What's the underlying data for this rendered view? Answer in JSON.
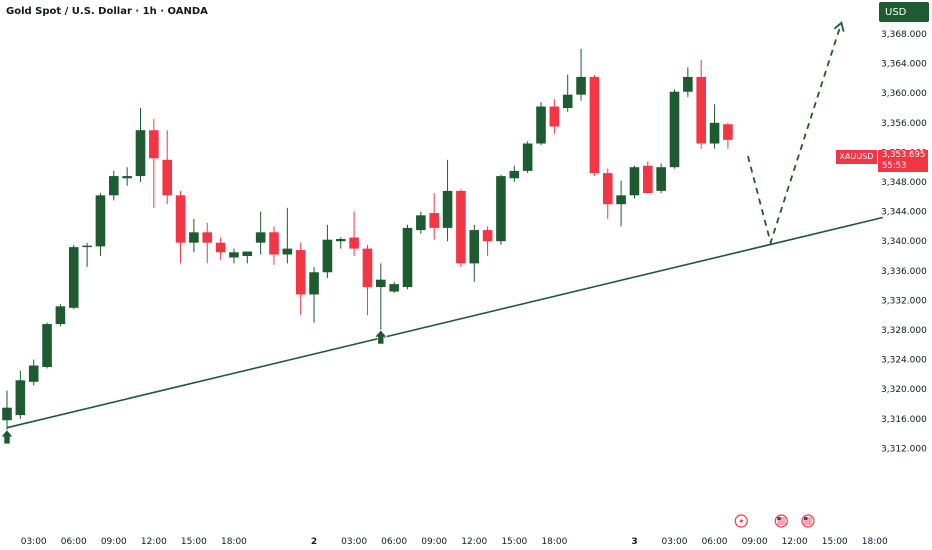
{
  "header": {
    "title": "Gold Spot / U.S. Dollar · 1h · OANDA",
    "currency": "USD"
  },
  "price_tag": {
    "symbol": "XAUUSD",
    "price": "3,353.695",
    "countdown": "55:53"
  },
  "colors": {
    "bull": "#1e5b31",
    "bear": "#f23645",
    "trendline": "#1e5b31",
    "projection": "#1e5b31",
    "badge": "#f23645"
  },
  "icons": {
    "pivot_arrows": "up-arrow-icon",
    "events": [
      "lightning-icon",
      "us-flag-icon",
      "us-flag-icon"
    ]
  },
  "chart_data": {
    "type": "candlestick",
    "symbol": "XAUUSD",
    "title": "Gold Spot / U.S. Dollar · 1h · OANDA",
    "ylim": [
      3311,
      3370
    ],
    "y_ticks": [
      "3,368.000",
      "3,364.000",
      "3,360.000",
      "3,356.000",
      "3,352.000",
      "3,348.000",
      "3,344.000",
      "3,340.000",
      "3,336.000",
      "3,332.000",
      "3,328.000",
      "3,324.000",
      "3,320.000",
      "3,316.000",
      "3,312.000"
    ],
    "x_ticks": [
      {
        "label": "03:00",
        "bold": false
      },
      {
        "label": "06:00",
        "bold": false
      },
      {
        "label": "09:00",
        "bold": false
      },
      {
        "label": "12:00",
        "bold": false
      },
      {
        "label": "15:00",
        "bold": false
      },
      {
        "label": "18:00",
        "bold": false
      },
      {
        "label": "2",
        "bold": true
      },
      {
        "label": "03:00",
        "bold": false
      },
      {
        "label": "06:00",
        "bold": false
      },
      {
        "label": "09:00",
        "bold": false
      },
      {
        "label": "12:00",
        "bold": false
      },
      {
        "label": "15:00",
        "bold": false
      },
      {
        "label": "18:00",
        "bold": false
      },
      {
        "label": "3",
        "bold": true
      },
      {
        "label": "03:00",
        "bold": false
      },
      {
        "label": "06:00",
        "bold": false
      },
      {
        "label": "09:00",
        "bold": false
      },
      {
        "label": "12:00",
        "bold": false
      },
      {
        "label": "15:00",
        "bold": false
      },
      {
        "label": "18:00",
        "bold": false
      }
    ],
    "x_tick_hours": [
      3,
      6,
      9,
      12,
      15,
      18,
      24,
      27,
      30,
      33,
      36,
      39,
      42,
      48,
      51,
      54,
      57,
      60,
      63,
      66
    ],
    "candles": [
      {
        "o": 3315.8,
        "h": 3319.8,
        "l": 3314.5,
        "c": 3317.5
      },
      {
        "o": 3316.5,
        "h": 3322.5,
        "l": 3316.0,
        "c": 3321.2
      },
      {
        "o": 3321.0,
        "h": 3324.0,
        "l": 3320.5,
        "c": 3323.2
      },
      {
        "o": 3323.0,
        "h": 3329.0,
        "l": 3322.8,
        "c": 3328.8
      },
      {
        "o": 3328.8,
        "h": 3331.5,
        "l": 3328.5,
        "c": 3331.2
      },
      {
        "o": 3331.0,
        "h": 3339.5,
        "l": 3330.8,
        "c": 3339.2
      },
      {
        "o": 3339.2,
        "h": 3339.8,
        "l": 3336.5,
        "c": 3339.4
      },
      {
        "o": 3339.3,
        "h": 3346.5,
        "l": 3338.0,
        "c": 3346.2
      },
      {
        "o": 3346.2,
        "h": 3349.5,
        "l": 3345.5,
        "c": 3348.8
      },
      {
        "o": 3348.5,
        "h": 3350.0,
        "l": 3347.5,
        "c": 3348.8
      },
      {
        "o": 3348.8,
        "h": 3358.0,
        "l": 3348.0,
        "c": 3355.0
      },
      {
        "o": 3355.0,
        "h": 3356.5,
        "l": 3344.5,
        "c": 3351.2
      },
      {
        "o": 3351.0,
        "h": 3355.0,
        "l": 3345.0,
        "c": 3346.2
      },
      {
        "o": 3346.2,
        "h": 3346.8,
        "l": 3337.0,
        "c": 3339.8
      },
      {
        "o": 3339.8,
        "h": 3343.0,
        "l": 3338.5,
        "c": 3341.2
      },
      {
        "o": 3341.2,
        "h": 3342.5,
        "l": 3337.0,
        "c": 3339.8
      },
      {
        "o": 3339.8,
        "h": 3340.5,
        "l": 3337.5,
        "c": 3338.5
      },
      {
        "o": 3337.8,
        "h": 3339.0,
        "l": 3337.0,
        "c": 3338.5
      },
      {
        "o": 3338.0,
        "h": 3338.5,
        "l": 3337.0,
        "c": 3338.6
      },
      {
        "o": 3339.8,
        "h": 3344.0,
        "l": 3338.2,
        "c": 3341.2
      },
      {
        "o": 3341.2,
        "h": 3342.0,
        "l": 3336.8,
        "c": 3338.2
      },
      {
        "o": 3338.2,
        "h": 3344.5,
        "l": 3337.0,
        "c": 3339.0
      },
      {
        "o": 3338.8,
        "h": 3339.8,
        "l": 3330.0,
        "c": 3332.8
      },
      {
        "o": 3332.8,
        "h": 3336.5,
        "l": 3329.0,
        "c": 3335.8
      },
      {
        "o": 3335.8,
        "h": 3342.2,
        "l": 3335.0,
        "c": 3340.2
      },
      {
        "o": 3340.0,
        "h": 3340.5,
        "l": 3339.0,
        "c": 3340.3
      },
      {
        "o": 3340.5,
        "h": 3344.0,
        "l": 3338.0,
        "c": 3339.0
      },
      {
        "o": 3339.0,
        "h": 3339.5,
        "l": 3330.0,
        "c": 3333.8
      },
      {
        "o": 3333.8,
        "h": 3337.0,
        "l": 3328.0,
        "c": 3334.8
      },
      {
        "o": 3333.2,
        "h": 3334.5,
        "l": 3333.0,
        "c": 3334.2
      },
      {
        "o": 3333.8,
        "h": 3342.2,
        "l": 3333.5,
        "c": 3341.8
      },
      {
        "o": 3341.5,
        "h": 3344.0,
        "l": 3341.0,
        "c": 3343.5
      },
      {
        "o": 3343.8,
        "h": 3346.5,
        "l": 3340.2,
        "c": 3341.8
      },
      {
        "o": 3341.8,
        "h": 3351.0,
        "l": 3340.0,
        "c": 3346.8
      },
      {
        "o": 3346.8,
        "h": 3347.0,
        "l": 3336.5,
        "c": 3337.0
      },
      {
        "o": 3337.0,
        "h": 3342.2,
        "l": 3334.5,
        "c": 3341.5
      },
      {
        "o": 3341.5,
        "h": 3342.0,
        "l": 3338.0,
        "c": 3340.0
      },
      {
        "o": 3340.0,
        "h": 3349.0,
        "l": 3339.5,
        "c": 3348.8
      },
      {
        "o": 3348.5,
        "h": 3350.2,
        "l": 3348.0,
        "c": 3349.5
      },
      {
        "o": 3349.5,
        "h": 3353.5,
        "l": 3349.2,
        "c": 3353.2
      },
      {
        "o": 3353.2,
        "h": 3358.8,
        "l": 3353.0,
        "c": 3358.2
      },
      {
        "o": 3358.2,
        "h": 3359.2,
        "l": 3354.5,
        "c": 3355.5
      },
      {
        "o": 3358.0,
        "h": 3362.5,
        "l": 3357.5,
        "c": 3359.8
      },
      {
        "o": 3359.8,
        "h": 3366.0,
        "l": 3359.0,
        "c": 3362.2
      },
      {
        "o": 3362.2,
        "h": 3362.5,
        "l": 3348.8,
        "c": 3349.2
      },
      {
        "o": 3349.2,
        "h": 3349.8,
        "l": 3343.0,
        "c": 3345.0
      },
      {
        "o": 3345.0,
        "h": 3348.2,
        "l": 3342.0,
        "c": 3346.2
      },
      {
        "o": 3346.2,
        "h": 3350.2,
        "l": 3345.8,
        "c": 3350.0
      },
      {
        "o": 3350.2,
        "h": 3350.8,
        "l": 3346.5,
        "c": 3346.5
      },
      {
        "o": 3346.8,
        "h": 3350.5,
        "l": 3346.5,
        "c": 3350.0
      },
      {
        "o": 3350.0,
        "h": 3360.5,
        "l": 3349.8,
        "c": 3360.2
      },
      {
        "o": 3360.2,
        "h": 3363.5,
        "l": 3359.5,
        "c": 3362.2
      },
      {
        "o": 3362.2,
        "h": 3364.5,
        "l": 3352.5,
        "c": 3353.2
      },
      {
        "o": 3353.2,
        "h": 3358.5,
        "l": 3352.5,
        "c": 3356.0
      },
      {
        "o": 3355.8,
        "h": 3356.0,
        "l": 3352.5,
        "c": 3353.7
      }
    ],
    "trendline": [
      [
        1.0,
        3314.8
      ],
      [
        66.6,
        3343.2
      ]
    ],
    "projection": [
      [
        56.5,
        3351.5
      ],
      [
        58.2,
        3339.8
      ],
      [
        63.5,
        3369.5
      ]
    ],
    "pivot_markers": [
      {
        "x": 1.0,
        "y": 3314.5
      },
      {
        "x": 29.0,
        "y": 3328.0
      }
    ],
    "event_markers": [
      {
        "x": 56.0,
        "icon": "lightning-icon"
      },
      {
        "x": 59.0,
        "icon": "us-flag-icon"
      },
      {
        "x": 61.0,
        "icon": "us-flag-icon"
      }
    ],
    "last_price": 3353.695
  }
}
